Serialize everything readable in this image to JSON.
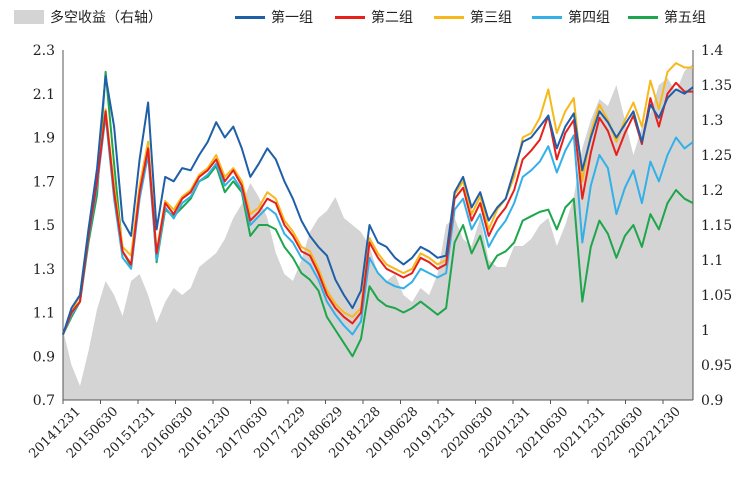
{
  "chart_data": {
    "type": "line",
    "title": "",
    "xlabel": "",
    "ylabel": "",
    "ylim": [
      0.7,
      2.3
    ],
    "y2lim": [
      0.9,
      1.4
    ],
    "y_ticks": [
      "0.7",
      "0.9",
      "1.1",
      "1.3",
      "1.5",
      "1.7",
      "1.9",
      "2.1",
      "2.3"
    ],
    "y2_ticks": [
      "0.9",
      "0.95",
      "1",
      "1.05",
      "1.1",
      "1.15",
      "1.2",
      "1.25",
      "1.3",
      "1.35",
      "1.4"
    ],
    "x_tick_labels": [
      "20141231",
      "20150630",
      "20151231",
      "20160630",
      "20161230",
      "20170630",
      "20171229",
      "20180629",
      "20181228",
      "20190628",
      "20191231",
      "20200630",
      "20201231",
      "20210630",
      "20211231",
      "20220630",
      "20221230"
    ],
    "legend": [
      "多空收益（右轴）",
      "第一组",
      "第二组",
      "第三组",
      "第四组",
      "第五组"
    ],
    "colors": {
      "area": "#d4d4d4",
      "g1": "#1f5fa8",
      "g2": "#e8201c",
      "g3": "#f7b81b",
      "g4": "#33b0e8",
      "g5": "#1da64b"
    },
    "series": [
      {
        "name": "多空收益（右轴）",
        "axis": "right",
        "kind": "area",
        "values": [
          1.0,
          0.95,
          0.92,
          0.97,
          1.03,
          1.07,
          1.05,
          1.02,
          1.07,
          1.08,
          1.05,
          1.01,
          1.04,
          1.06,
          1.05,
          1.06,
          1.09,
          1.1,
          1.11,
          1.13,
          1.16,
          1.18,
          1.21,
          1.19,
          1.16,
          1.11,
          1.08,
          1.07,
          1.1,
          1.14,
          1.16,
          1.17,
          1.19,
          1.16,
          1.15,
          1.14,
          1.12,
          1.08,
          1.07,
          1.08,
          1.05,
          1.04,
          1.06,
          1.05,
          1.08,
          1.15,
          1.16,
          1.13,
          1.12,
          1.16,
          1.1,
          1.09,
          1.09,
          1.12,
          1.12,
          1.13,
          1.15,
          1.16,
          1.12,
          1.15,
          1.19,
          1.26,
          1.3,
          1.33,
          1.32,
          1.35,
          1.3,
          1.25,
          1.29,
          1.31,
          1.35,
          1.36,
          1.34,
          1.37,
          1.38
        ]
      },
      {
        "name": "第一组",
        "axis": "left",
        "kind": "line",
        "values": [
          1.0,
          1.12,
          1.18,
          1.48,
          1.76,
          2.18,
          1.95,
          1.52,
          1.45,
          1.8,
          2.06,
          1.48,
          1.72,
          1.7,
          1.76,
          1.75,
          1.82,
          1.88,
          1.97,
          1.9,
          1.95,
          1.85,
          1.72,
          1.78,
          1.85,
          1.8,
          1.7,
          1.62,
          1.52,
          1.45,
          1.4,
          1.36,
          1.25,
          1.18,
          1.12,
          1.2,
          1.5,
          1.42,
          1.4,
          1.35,
          1.32,
          1.35,
          1.4,
          1.38,
          1.35,
          1.36,
          1.65,
          1.72,
          1.58,
          1.65,
          1.52,
          1.58,
          1.62,
          1.75,
          1.88,
          1.9,
          1.95,
          2.0,
          1.85,
          1.95,
          2.01,
          1.75,
          1.9,
          2.02,
          1.97,
          1.9,
          1.96,
          2.02,
          1.88,
          2.05,
          1.99,
          2.08,
          2.12,
          2.1,
          2.13
        ]
      },
      {
        "name": "第二组",
        "axis": "left",
        "kind": "line",
        "values": [
          1.0,
          1.1,
          1.15,
          1.45,
          1.7,
          2.02,
          1.65,
          1.38,
          1.32,
          1.65,
          1.85,
          1.37,
          1.6,
          1.55,
          1.62,
          1.65,
          1.72,
          1.75,
          1.8,
          1.7,
          1.75,
          1.68,
          1.52,
          1.56,
          1.62,
          1.6,
          1.5,
          1.45,
          1.38,
          1.36,
          1.28,
          1.18,
          1.12,
          1.08,
          1.05,
          1.1,
          1.42,
          1.35,
          1.3,
          1.28,
          1.26,
          1.28,
          1.35,
          1.33,
          1.3,
          1.32,
          1.62,
          1.67,
          1.52,
          1.6,
          1.45,
          1.53,
          1.58,
          1.66,
          1.8,
          1.84,
          1.89,
          2.0,
          1.8,
          1.92,
          1.98,
          1.62,
          1.83,
          1.99,
          1.93,
          1.82,
          1.92,
          2.0,
          1.87,
          2.08,
          1.95,
          2.1,
          2.15,
          2.11,
          2.11
        ]
      },
      {
        "name": "第三组",
        "axis": "left",
        "kind": "line",
        "values": [
          1.0,
          1.1,
          1.18,
          1.48,
          1.72,
          2.03,
          1.68,
          1.4,
          1.36,
          1.68,
          1.88,
          1.38,
          1.61,
          1.57,
          1.63,
          1.66,
          1.73,
          1.76,
          1.82,
          1.72,
          1.76,
          1.7,
          1.55,
          1.58,
          1.65,
          1.62,
          1.52,
          1.47,
          1.4,
          1.38,
          1.3,
          1.2,
          1.14,
          1.1,
          1.08,
          1.12,
          1.44,
          1.37,
          1.32,
          1.3,
          1.28,
          1.3,
          1.37,
          1.35,
          1.32,
          1.34,
          1.64,
          1.7,
          1.55,
          1.63,
          1.48,
          1.57,
          1.62,
          1.72,
          1.9,
          1.92,
          1.99,
          2.12,
          1.92,
          2.02,
          2.08,
          1.7,
          1.92,
          2.05,
          1.98,
          1.88,
          1.98,
          2.06,
          1.95,
          2.16,
          2.03,
          2.2,
          2.24,
          2.22,
          2.22
        ]
      },
      {
        "name": "第四组",
        "axis": "left",
        "kind": "line",
        "values": [
          1.0,
          1.09,
          1.15,
          1.44,
          1.68,
          2.0,
          1.62,
          1.35,
          1.3,
          1.62,
          1.82,
          1.34,
          1.58,
          1.53,
          1.6,
          1.63,
          1.7,
          1.73,
          1.78,
          1.68,
          1.72,
          1.66,
          1.5,
          1.54,
          1.58,
          1.55,
          1.46,
          1.42,
          1.35,
          1.32,
          1.25,
          1.15,
          1.09,
          1.04,
          1.0,
          1.06,
          1.35,
          1.28,
          1.24,
          1.22,
          1.21,
          1.24,
          1.3,
          1.28,
          1.26,
          1.28,
          1.57,
          1.62,
          1.48,
          1.55,
          1.4,
          1.47,
          1.52,
          1.6,
          1.72,
          1.75,
          1.79,
          1.86,
          1.74,
          1.84,
          1.91,
          1.42,
          1.68,
          1.82,
          1.76,
          1.55,
          1.67,
          1.75,
          1.6,
          1.79,
          1.7,
          1.82,
          1.9,
          1.85,
          1.88
        ]
      },
      {
        "name": "第五组",
        "axis": "left",
        "kind": "line",
        "values": [
          1.0,
          1.08,
          1.15,
          1.42,
          1.64,
          2.2,
          1.78,
          1.38,
          1.31,
          1.65,
          1.88,
          1.33,
          1.57,
          1.54,
          1.58,
          1.62,
          1.7,
          1.72,
          1.77,
          1.65,
          1.7,
          1.65,
          1.45,
          1.5,
          1.5,
          1.48,
          1.4,
          1.35,
          1.28,
          1.25,
          1.2,
          1.08,
          1.02,
          0.96,
          0.9,
          0.98,
          1.22,
          1.16,
          1.13,
          1.12,
          1.1,
          1.12,
          1.15,
          1.12,
          1.09,
          1.12,
          1.42,
          1.5,
          1.37,
          1.45,
          1.3,
          1.36,
          1.38,
          1.42,
          1.52,
          1.54,
          1.56,
          1.57,
          1.48,
          1.58,
          1.62,
          1.15,
          1.4,
          1.52,
          1.46,
          1.35,
          1.45,
          1.5,
          1.4,
          1.55,
          1.48,
          1.6,
          1.66,
          1.62,
          1.6
        ]
      }
    ]
  }
}
